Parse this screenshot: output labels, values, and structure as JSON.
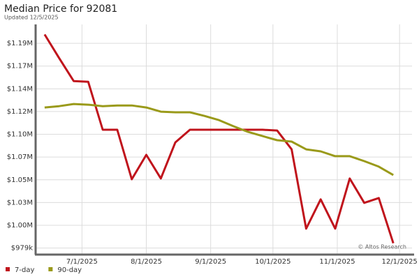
{
  "chart_data": {
    "type": "line",
    "title": "Median Price for 92081",
    "subtitle": "Updated 12/5/2025",
    "annotation": "© Altos Research",
    "x": [
      "6/13/2025",
      "6/20/2025",
      "6/27/2025",
      "7/4/2025",
      "7/11/2025",
      "7/18/2025",
      "7/25/2025",
      "8/1/2025",
      "8/8/2025",
      "8/15/2025",
      "8/22/2025",
      "8/29/2025",
      "9/5/2025",
      "9/12/2025",
      "9/19/2025",
      "9/26/2025",
      "10/3/2025",
      "10/10/2025",
      "10/17/2025",
      "10/24/2025",
      "10/31/2025",
      "11/7/2025",
      "11/14/2025",
      "11/21/2025",
      "11/28/2025"
    ],
    "series": [
      {
        "name": "7-day",
        "color": "#c0141c",
        "values": [
          1199600,
          1175200,
          1151500,
          1150800,
          1101200,
          1101200,
          1050100,
          1075300,
          1050900,
          1088200,
          1101200,
          1101200,
          1101200,
          1101200,
          1101200,
          1101200,
          1100400,
          1081000,
          999100,
          1029300,
          999100,
          1050900,
          1025700,
          1030700,
          984000
        ]
      },
      {
        "name": "90-day",
        "color": "#9a9a1a",
        "values": [
          1124200,
          1125600,
          1127800,
          1127100,
          1125600,
          1126300,
          1126300,
          1124200,
          1119900,
          1119200,
          1119200,
          1115500,
          1111200,
          1104800,
          1099000,
          1094700,
          1090400,
          1089000,
          1081000,
          1078900,
          1073900,
          1073900,
          1068800,
          1063100,
          1054500
        ]
      }
    ],
    "xlim": [
      "6/9/2025",
      "12/7/2025"
    ],
    "xticks": [
      "7/1/2025",
      "8/1/2025",
      "9/1/2025",
      "10/1/2025",
      "11/1/2025",
      "12/1/2025"
    ],
    "ylim": [
      973000,
      1210000
    ],
    "yticks": [
      {
        "value": 979000,
        "label": "$979k"
      },
      {
        "value": 1002500,
        "label": "$1.00M"
      },
      {
        "value": 1026000,
        "label": "$1.03M"
      },
      {
        "value": 1049500,
        "label": "$1.05M"
      },
      {
        "value": 1073000,
        "label": "$1.07M"
      },
      {
        "value": 1096500,
        "label": "$1.10M"
      },
      {
        "value": 1120000,
        "label": "$1.12M"
      },
      {
        "value": 1143500,
        "label": "$1.14M"
      },
      {
        "value": 1167000,
        "label": "$1.17M"
      },
      {
        "value": 1190500,
        "label": "$1.19M"
      }
    ],
    "grid": true,
    "legend": "bottom-left"
  }
}
